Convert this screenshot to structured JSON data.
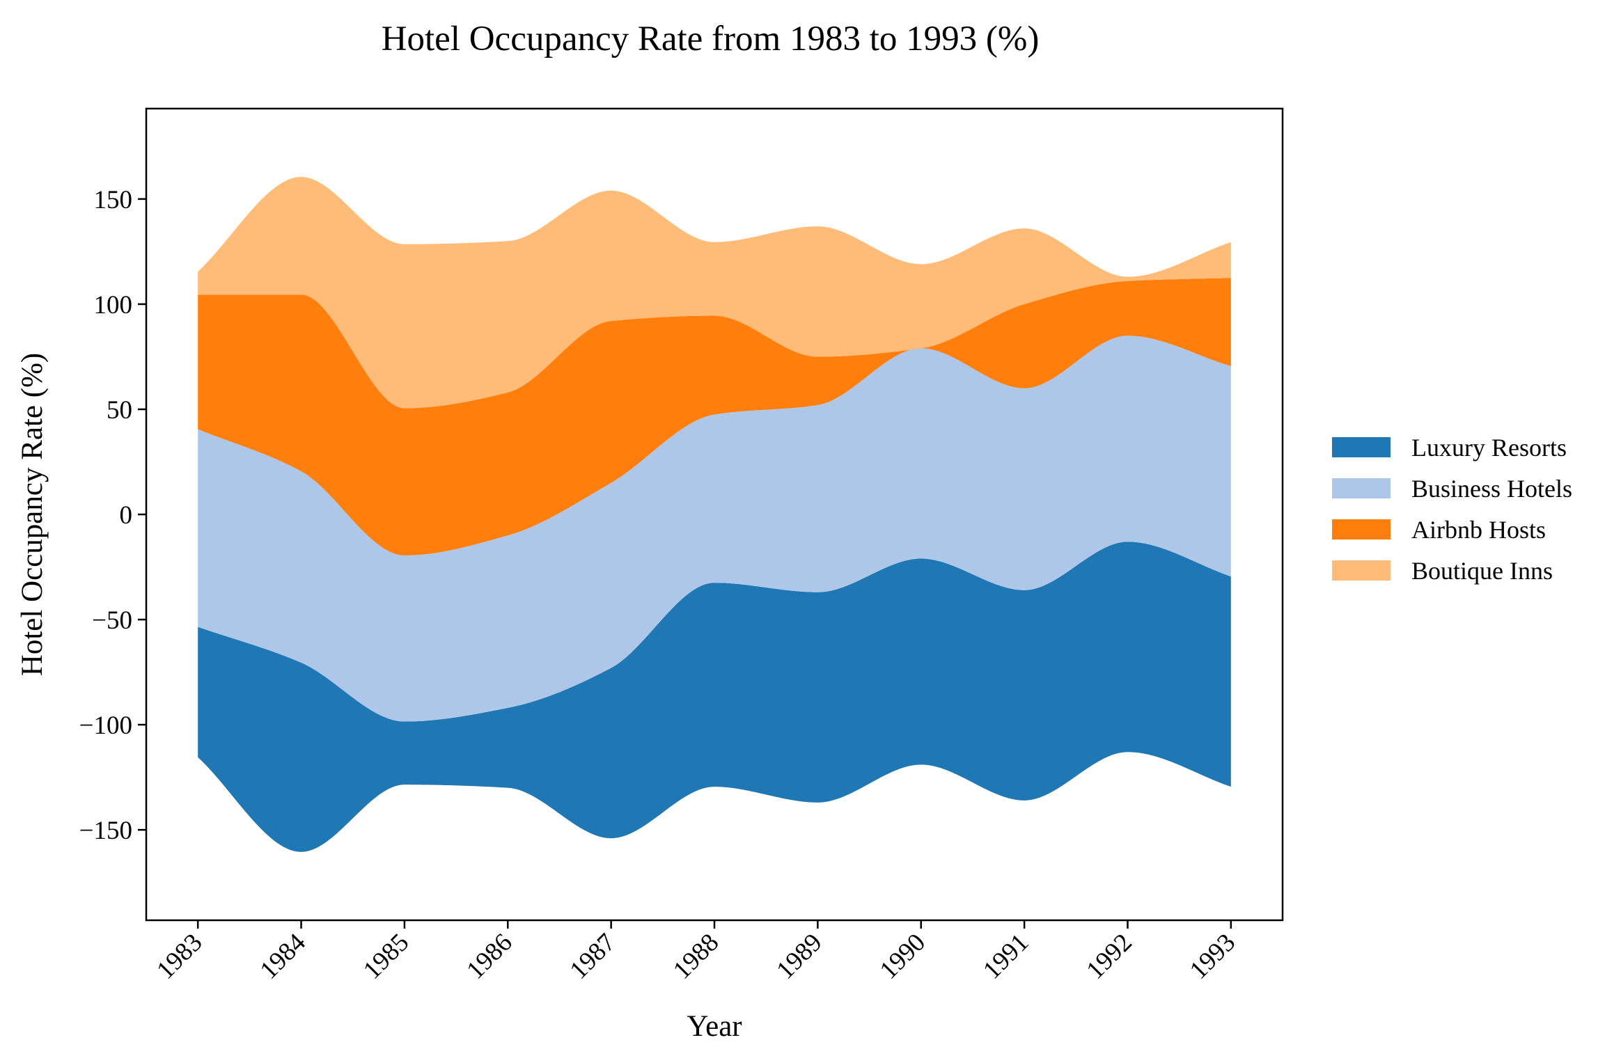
{
  "chart_data": {
    "type": "area",
    "subtype": "streamgraph",
    "title": "Hotel Occupancy Rate from 1983 to 1993 (%)",
    "xlabel": "Year",
    "ylabel": "Hotel Occupancy Rate (%)",
    "x": [
      1983,
      1984,
      1985,
      1986,
      1987,
      1988,
      1989,
      1990,
      1991,
      1992,
      1993
    ],
    "xlim": [
      1982.5,
      1993.5
    ],
    "ylim": [
      -193,
      193
    ],
    "yticks": [
      -150,
      -100,
      -50,
      0,
      50,
      100,
      150
    ],
    "ytick_labels": [
      "−150",
      "−100",
      "−50",
      "0",
      "50",
      "100",
      "150"
    ],
    "grid": false,
    "legend_position": "right",
    "series": [
      {
        "name": "Luxury Resorts",
        "color": "#1f77b4",
        "values": [
          62,
          90,
          30,
          38,
          81,
          97,
          100,
          98,
          100,
          100,
          100
        ]
      },
      {
        "name": "Business Hotels",
        "color": "#aec7e8",
        "values": [
          94,
          91,
          79,
          82,
          88,
          80,
          89,
          100,
          96,
          98,
          100
        ]
      },
      {
        "name": "Airbnb Hosts",
        "color": "#ff7f0e",
        "values": [
          64,
          84,
          70,
          68,
          77,
          47,
          23,
          0,
          40,
          26,
          42
        ]
      },
      {
        "name": "Boutique Inns",
        "color": "#ffbb78",
        "values": [
          11,
          56,
          78,
          72,
          62,
          35,
          62,
          40,
          36,
          2,
          17
        ]
      }
    ]
  }
}
